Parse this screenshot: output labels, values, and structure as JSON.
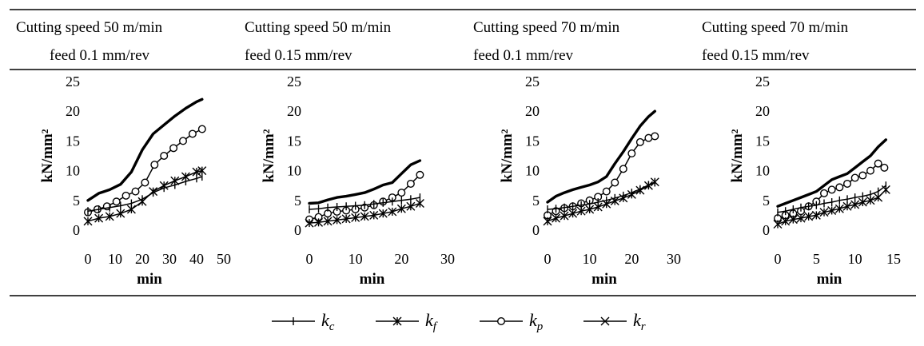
{
  "legend": [
    {
      "sym": "k",
      "sub": "c",
      "marker": "plus"
    },
    {
      "sym": "k",
      "sub": "f",
      "marker": "asterisk"
    },
    {
      "sym": "k",
      "sub": "p",
      "marker": "circle"
    },
    {
      "sym": "k",
      "sub": "r",
      "marker": "cross"
    }
  ],
  "chart_data": [
    {
      "type": "line",
      "header": [
        "Cutting speed 50 m/min",
        "feed 0.1 mm/rev"
      ],
      "xlabel": "min",
      "ylabel": "kN/mm²",
      "xlim": [
        0,
        50
      ],
      "xticks": [
        0,
        10,
        20,
        30,
        40,
        50
      ],
      "ylim": [
        0,
        25
      ],
      "yticks": [
        0,
        5,
        10,
        15,
        20,
        25
      ],
      "series": [
        {
          "key": "kr",
          "x": [
            0,
            4,
            8,
            12,
            16,
            20,
            24,
            28,
            32,
            36,
            40,
            42
          ],
          "y": [
            5,
            6.2,
            6.8,
            7.7,
            9.8,
            13.5,
            16.2,
            17.7,
            19.2,
            20.5,
            21.6,
            22
          ]
        },
        {
          "key": "kp",
          "x": [
            0,
            3.5,
            7,
            10.5,
            14,
            17.5,
            21,
            24.5,
            28,
            31.5,
            35,
            38.5,
            42
          ],
          "y": [
            3,
            3.5,
            4,
            4.8,
            5.8,
            6.5,
            8,
            11,
            12.5,
            13.8,
            15,
            16.2,
            17
          ]
        },
        {
          "key": "kc",
          "x": [
            0,
            4,
            8,
            12,
            16,
            20,
            24,
            28,
            32,
            36,
            40,
            42
          ],
          "y": [
            3.2,
            3.5,
            3.8,
            4.1,
            4.5,
            5.2,
            6.3,
            7.1,
            7.6,
            8.2,
            8.7,
            9
          ]
        },
        {
          "key": "kf",
          "x": [
            0,
            4,
            8,
            12,
            16,
            20,
            24,
            28,
            32,
            36,
            40,
            42
          ],
          "y": [
            1.5,
            2,
            2.3,
            2.8,
            3.5,
            4.8,
            6.5,
            7.5,
            8.3,
            9,
            9.8,
            10
          ]
        }
      ]
    },
    {
      "type": "line",
      "header": [
        "Cutting speed 50 m/min",
        "feed 0.15 mm/rev"
      ],
      "xlabel": "min",
      "ylabel": "kN/mm²",
      "xlim": [
        0,
        30
      ],
      "xticks": [
        0,
        10,
        20,
        30
      ],
      "ylim": [
        0,
        25
      ],
      "yticks": [
        0,
        5,
        10,
        15,
        20,
        25
      ],
      "series": [
        {
          "key": "kr",
          "x": [
            0,
            2,
            4,
            6,
            8,
            10,
            12,
            14,
            16,
            18,
            20,
            22,
            24
          ],
          "y": [
            4.5,
            4.6,
            5.1,
            5.5,
            5.7,
            6,
            6.3,
            6.9,
            7.6,
            8,
            9.5,
            11,
            11.7
          ]
        },
        {
          "key": "kp",
          "x": [
            0,
            2,
            4,
            6,
            8,
            10,
            12,
            14,
            16,
            18,
            20,
            22,
            24
          ],
          "y": [
            1.8,
            2.2,
            2.8,
            3.1,
            3.3,
            3.5,
            3.8,
            4.2,
            4.8,
            5.5,
            6.3,
            7.8,
            9.3
          ]
        },
        {
          "key": "kc",
          "x": [
            0,
            2,
            4,
            6,
            8,
            10,
            12,
            14,
            16,
            18,
            20,
            22,
            24
          ],
          "y": [
            3.5,
            3.6,
            3.8,
            3.9,
            4,
            4.1,
            4.2,
            4.4,
            4.6,
            4.8,
            5,
            5.2,
            5.5
          ]
        },
        {
          "key": "kf",
          "x": [
            0,
            2,
            4,
            6,
            8,
            10,
            12,
            14,
            16,
            18,
            20,
            22,
            24
          ],
          "y": [
            1.2,
            1.3,
            1.5,
            1.7,
            1.9,
            2.1,
            2.3,
            2.5,
            2.8,
            3.1,
            3.6,
            4,
            4.5
          ]
        }
      ]
    },
    {
      "type": "line",
      "header": [
        "Cutting speed 70 m/min",
        "feed 0.1 mm/rev"
      ],
      "xlabel": "min",
      "ylabel": "kN/mm²",
      "xlim": [
        0,
        30
      ],
      "xticks": [
        0,
        10,
        20,
        30
      ],
      "ylim": [
        0,
        25
      ],
      "yticks": [
        0,
        5,
        10,
        15,
        20,
        25
      ],
      "series": [
        {
          "key": "kr",
          "x": [
            0,
            2,
            4,
            6,
            8,
            10,
            12,
            14,
            16,
            18,
            20,
            22,
            24,
            25.5
          ],
          "y": [
            4.7,
            5.7,
            6.3,
            6.8,
            7.2,
            7.6,
            8.1,
            9,
            11.2,
            13.2,
            15.4,
            17.5,
            19.1,
            20
          ]
        },
        {
          "key": "kp",
          "x": [
            0,
            2,
            4,
            6,
            8,
            10,
            12,
            14,
            16,
            18,
            20,
            22,
            24,
            25.5
          ],
          "y": [
            2.5,
            3.2,
            3.7,
            4,
            4.5,
            5,
            5.6,
            6.5,
            8,
            10.3,
            12.9,
            14.8,
            15.5,
            15.8
          ]
        },
        {
          "key": "kc",
          "x": [
            0,
            2,
            4,
            6,
            8,
            10,
            12,
            14,
            16,
            18,
            20,
            22,
            24,
            25.5
          ],
          "y": [
            3.5,
            3.6,
            3.8,
            4,
            4.2,
            4.4,
            4.7,
            5,
            5.4,
            5.8,
            6.3,
            6.9,
            7.6,
            8
          ]
        },
        {
          "key": "kf",
          "x": [
            0,
            2,
            4,
            6,
            8,
            10,
            12,
            14,
            16,
            18,
            20,
            22,
            24,
            25.5
          ],
          "y": [
            1.5,
            2,
            2.4,
            2.8,
            3.2,
            3.5,
            3.9,
            4.4,
            4.9,
            5.4,
            6,
            6.7,
            7.5,
            8.1
          ]
        }
      ]
    },
    {
      "type": "line",
      "header": [
        "Cutting speed 70 m/min",
        "feed 0.15 mm/rev"
      ],
      "xlabel": "min",
      "ylabel": "kN/mm²",
      "xlim": [
        0,
        15
      ],
      "xticks": [
        0,
        5,
        10,
        15
      ],
      "ylim": [
        0,
        25
      ],
      "yticks": [
        0,
        5,
        10,
        15,
        20,
        25
      ],
      "series": [
        {
          "key": "kr",
          "x": [
            0,
            1,
            2,
            3,
            4,
            5,
            6,
            7,
            8,
            9,
            10,
            11,
            12,
            13,
            14
          ],
          "y": [
            4,
            4.5,
            5,
            5.5,
            6,
            6.5,
            7.5,
            8.5,
            9,
            9.5,
            10.5,
            11.5,
            12.5,
            14,
            15.2
          ]
        },
        {
          "key": "kp",
          "x": [
            0,
            1,
            2,
            3,
            4,
            5,
            6,
            7,
            8,
            9,
            10,
            11,
            12,
            13,
            13.8
          ],
          "y": [
            2,
            2.5,
            2.8,
            3.2,
            4,
            4.8,
            6.2,
            6.8,
            7.2,
            7.8,
            8.8,
            9.2,
            10,
            11.2,
            10.5
          ]
        },
        {
          "key": "kc",
          "x": [
            0,
            1,
            2,
            3,
            4,
            5,
            6,
            7,
            8,
            9,
            10,
            11,
            12,
            13,
            14
          ],
          "y": [
            3,
            3.2,
            3.5,
            3.8,
            4,
            4.2,
            4.5,
            4.7,
            5,
            5.2,
            5.5,
            5.7,
            6,
            6.5,
            7.5
          ]
        },
        {
          "key": "kf",
          "x": [
            0,
            1,
            2,
            3,
            4,
            5,
            6,
            7,
            8,
            9,
            10,
            11,
            12,
            13,
            14
          ],
          "y": [
            1,
            1.5,
            1.8,
            2,
            2.3,
            2.5,
            3,
            3.3,
            3.6,
            4,
            4.3,
            4.7,
            5,
            5.5,
            6.8
          ]
        }
      ]
    }
  ]
}
